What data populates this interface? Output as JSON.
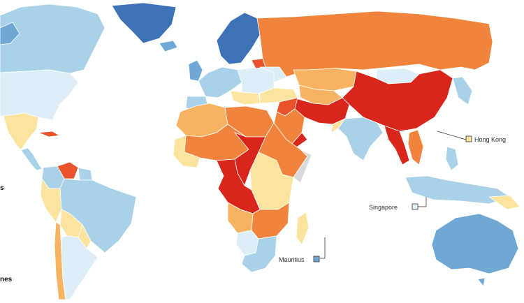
{
  "palette": {
    "dark_red": "#d9261c",
    "red_orange": "#e8532c",
    "orange": "#f0843c",
    "light_orange": "#f6b463",
    "pale_yellow": "#fbe49e",
    "very_light_blue": "#dceef7",
    "light_blue": "#a9d2e8",
    "mid_blue": "#6fa8d4",
    "dark_blue": "#3d72b7",
    "no_data": "#d9d9d9"
  },
  "callouts": {
    "hong_kong": {
      "label": "Hong Kong",
      "color": "#fbe49e"
    },
    "singapore": {
      "label": "Singapore",
      "color": "#dceef7"
    },
    "mauritius": {
      "label": "Mauritius",
      "color": "#6fa8d4"
    }
  },
  "legend_fragments": {
    "left_s": "s",
    "left_nes": "nes"
  }
}
